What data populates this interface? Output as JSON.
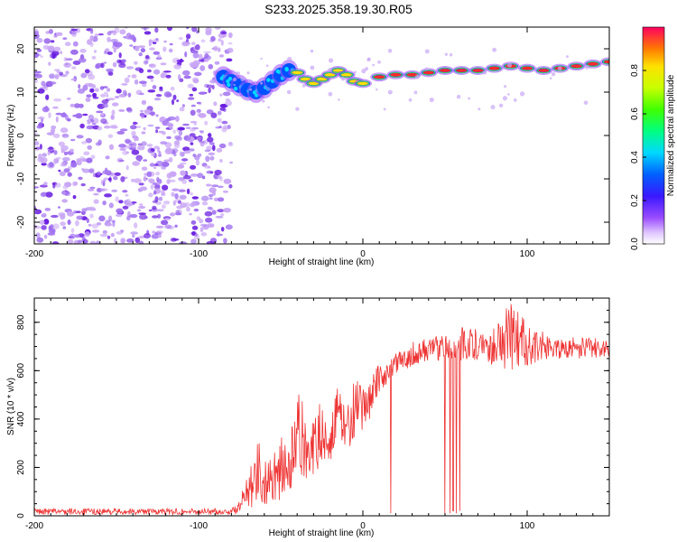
{
  "title": "S233.2025.358.19.30.R05",
  "colors": {
    "line": "#ee3333",
    "axis": "#000000",
    "purple_dark": "#6a1ee0",
    "purple_light": "#c9a6f5"
  },
  "chart_data": [
    {
      "type": "heatmap",
      "title": "S233.2025.358.19.30.R05",
      "xlabel": "Height of straight line (km)",
      "ylabel": "Frequency (Hz)",
      "xlim": [
        -200,
        150
      ],
      "ylim": [
        -25,
        25
      ],
      "x_ticks": [
        -200,
        -100,
        0,
        100
      ],
      "y_ticks": [
        -20,
        -10,
        0,
        10,
        20
      ],
      "noise_region_x": [
        -200,
        -80
      ],
      "ridge_track": [
        {
          "x": -85,
          "f": 13.5
        },
        {
          "x": -80,
          "f": 12.5
        },
        {
          "x": -75,
          "f": 11.5
        },
        {
          "x": -70,
          "f": 10.5
        },
        {
          "x": -65,
          "f": 10.0
        },
        {
          "x": -60,
          "f": 11.0
        },
        {
          "x": -55,
          "f": 12.5
        },
        {
          "x": -50,
          "f": 14.0
        },
        {
          "x": -45,
          "f": 15.0
        },
        {
          "x": -40,
          "f": 14.5
        },
        {
          "x": -35,
          "f": 13.0
        },
        {
          "x": -30,
          "f": 12.0
        },
        {
          "x": -25,
          "f": 13.0
        },
        {
          "x": -20,
          "f": 14.0
        },
        {
          "x": -15,
          "f": 15.0
        },
        {
          "x": -10,
          "f": 14.0
        },
        {
          "x": -5,
          "f": 12.5
        },
        {
          "x": 0,
          "f": 12.0
        },
        {
          "x": 10,
          "f": 13.5
        },
        {
          "x": 20,
          "f": 14.0
        },
        {
          "x": 30,
          "f": 14.0
        },
        {
          "x": 40,
          "f": 14.5
        },
        {
          "x": 50,
          "f": 15.0
        },
        {
          "x": 60,
          "f": 15.0
        },
        {
          "x": 70,
          "f": 15.0
        },
        {
          "x": 80,
          "f": 15.5
        },
        {
          "x": 90,
          "f": 16.0
        },
        {
          "x": 100,
          "f": 15.5
        },
        {
          "x": 110,
          "f": 15.0
        },
        {
          "x": 120,
          "f": 15.5
        },
        {
          "x": 130,
          "f": 16.0
        },
        {
          "x": 140,
          "f": 16.5
        },
        {
          "x": 150,
          "f": 17.0
        }
      ],
      "colorbar": {
        "label": "Normalized spectral amplitude",
        "range": [
          0,
          1
        ],
        "ticks": [
          0.0,
          0.2,
          0.4,
          0.6,
          0.8
        ],
        "tick_labels": [
          "0.0",
          "0.2",
          "0.4",
          "0.6",
          "0.8"
        ]
      }
    },
    {
      "type": "line",
      "xlabel": "Height of straight line (km)",
      "ylabel": "SNR (10 * v/v)",
      "xlim": [
        -200,
        150
      ],
      "ylim": [
        0,
        900
      ],
      "x_ticks": [
        -200,
        -100,
        0,
        100
      ],
      "y_ticks": [
        0,
        200,
        400,
        600,
        800
      ],
      "series": [
        {
          "name": "SNR",
          "envelope": [
            {
              "x": -200,
              "lo": 5,
              "hi": 30
            },
            {
              "x": -80,
              "lo": 5,
              "hi": 30
            },
            {
              "x": -75,
              "lo": 10,
              "hi": 60
            },
            {
              "x": -70,
              "lo": 40,
              "hi": 200
            },
            {
              "x": -65,
              "lo": 30,
              "hi": 370
            },
            {
              "x": -60,
              "lo": 40,
              "hi": 220
            },
            {
              "x": -55,
              "lo": 60,
              "hi": 280
            },
            {
              "x": -50,
              "lo": 60,
              "hi": 330
            },
            {
              "x": -45,
              "lo": 70,
              "hi": 300
            },
            {
              "x": -40,
              "lo": 100,
              "hi": 520
            },
            {
              "x": -35,
              "lo": 150,
              "hi": 450
            },
            {
              "x": -30,
              "lo": 170,
              "hi": 380
            },
            {
              "x": -25,
              "lo": 200,
              "hi": 500
            },
            {
              "x": -20,
              "lo": 230,
              "hi": 400
            },
            {
              "x": -15,
              "lo": 250,
              "hi": 560
            },
            {
              "x": -10,
              "lo": 280,
              "hi": 440
            },
            {
              "x": -5,
              "lo": 300,
              "hi": 580
            },
            {
              "x": 0,
              "lo": 320,
              "hi": 520
            },
            {
              "x": 5,
              "lo": 420,
              "hi": 620
            },
            {
              "x": 10,
              "lo": 500,
              "hi": 620
            },
            {
              "x": 15,
              "lo": 550,
              "hi": 640
            },
            {
              "x": 20,
              "lo": 580,
              "hi": 670
            },
            {
              "x": 25,
              "lo": 600,
              "hi": 690
            },
            {
              "x": 30,
              "lo": 620,
              "hi": 720
            },
            {
              "x": 40,
              "lo": 640,
              "hi": 740
            },
            {
              "x": 50,
              "lo": 640,
              "hi": 760
            },
            {
              "x": 60,
              "lo": 640,
              "hi": 780
            },
            {
              "x": 70,
              "lo": 640,
              "hi": 780
            },
            {
              "x": 80,
              "lo": 620,
              "hi": 800
            },
            {
              "x": 90,
              "lo": 600,
              "hi": 880
            },
            {
              "x": 100,
              "lo": 620,
              "hi": 800
            },
            {
              "x": 110,
              "lo": 640,
              "hi": 760
            },
            {
              "x": 120,
              "lo": 650,
              "hi": 740
            },
            {
              "x": 130,
              "lo": 650,
              "hi": 740
            },
            {
              "x": 140,
              "lo": 650,
              "hi": 740
            },
            {
              "x": 150,
              "lo": 650,
              "hi": 730
            }
          ],
          "dropouts": [
            {
              "x": 17,
              "value": 10
            },
            {
              "x": 50,
              "value": 10
            },
            {
              "x": 53,
              "value": 10
            },
            {
              "x": 55,
              "value": 20
            },
            {
              "x": 57,
              "value": 10
            },
            {
              "x": 59,
              "value": 20
            }
          ]
        }
      ]
    }
  ]
}
